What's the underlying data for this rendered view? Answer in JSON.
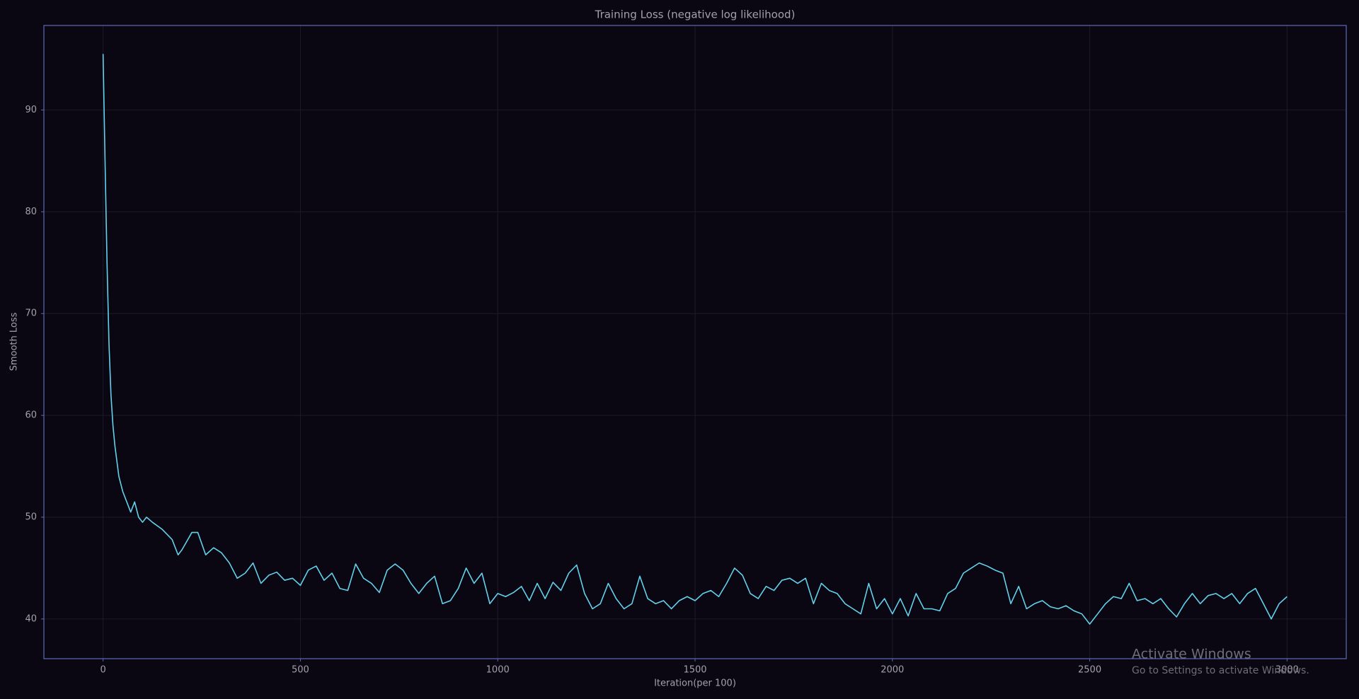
{
  "chart_data": {
    "type": "line",
    "title": "Training Loss (negative log likelihood)",
    "x_label": "Iteration(per 100)",
    "y_label": "Smooth Loss",
    "x": [
      0,
      5,
      10,
      15,
      20,
      25,
      30,
      40,
      50,
      60,
      70,
      80,
      90,
      100,
      110,
      125,
      150,
      175,
      190,
      200,
      225,
      240,
      260,
      280,
      300,
      320,
      340,
      360,
      380,
      400,
      420,
      440,
      460,
      480,
      500,
      520,
      540,
      560,
      580,
      600,
      620,
      640,
      660,
      680,
      700,
      720,
      740,
      760,
      780,
      800,
      820,
      840,
      860,
      880,
      900,
      920,
      940,
      960,
      980,
      1000,
      1020,
      1040,
      1060,
      1080,
      1100,
      1120,
      1140,
      1160,
      1180,
      1200,
      1220,
      1240,
      1260,
      1280,
      1300,
      1320,
      1340,
      1360,
      1380,
      1400,
      1420,
      1440,
      1460,
      1480,
      1500,
      1520,
      1540,
      1560,
      1580,
      1600,
      1620,
      1640,
      1660,
      1680,
      1700,
      1720,
      1740,
      1760,
      1780,
      1800,
      1820,
      1840,
      1860,
      1880,
      1900,
      1920,
      1940,
      1960,
      1980,
      2000,
      2020,
      2040,
      2060,
      2080,
      2100,
      2120,
      2140,
      2160,
      2180,
      2200,
      2220,
      2240,
      2260,
      2280,
      2300,
      2320,
      2340,
      2360,
      2380,
      2400,
      2420,
      2440,
      2460,
      2480,
      2500,
      2520,
      2540,
      2560,
      2580,
      2600,
      2620,
      2640,
      2660,
      2680,
      2700,
      2720,
      2740,
      2760,
      2780,
      2800,
      2820,
      2840,
      2860,
      2880,
      2900,
      2920,
      2940,
      2960,
      2980,
      3000
    ],
    "series": [
      {
        "name": "Smooth Loss",
        "color": "#62d2ea",
        "values": [
          95.5,
          85,
          75,
          67,
          62,
          59,
          57,
          54,
          52.5,
          51.5,
          50.5,
          51.5,
          50,
          49.5,
          50,
          49.5,
          48.8,
          47.8,
          46.3,
          46.8,
          48.5,
          48.5,
          46.3,
          47,
          46.5,
          45.5,
          44,
          44.5,
          45.5,
          43.5,
          44.3,
          44.6,
          43.8,
          44,
          43.3,
          44.8,
          45.2,
          43.8,
          44.5,
          43,
          42.8,
          45.4,
          44,
          43.5,
          42.6,
          44.8,
          45.4,
          44.8,
          43.5,
          42.5,
          43.5,
          44.2,
          41.5,
          41.8,
          43,
          45,
          43.5,
          44.5,
          41.5,
          42.5,
          42.2,
          42.6,
          43.2,
          41.8,
          43.5,
          42,
          43.6,
          42.8,
          44.5,
          45.3,
          42.5,
          41,
          41.5,
          43.5,
          42,
          41,
          41.5,
          44.2,
          42,
          41.5,
          41.8,
          41,
          41.8,
          42.2,
          41.8,
          42.5,
          42.8,
          42.2,
          43.5,
          45,
          44.3,
          42.5,
          42,
          43.2,
          42.8,
          43.8,
          44,
          43.5,
          44,
          41.5,
          43.5,
          42.8,
          42.5,
          41.5,
          41,
          40.5,
          43.5,
          41,
          42,
          40.5,
          42,
          40.3,
          42.5,
          41,
          41,
          40.8,
          42.5,
          43,
          44.5,
          45,
          45.5,
          45.2,
          44.8,
          44.5,
          41.5,
          43.2,
          41,
          41.5,
          41.8,
          41.2,
          41,
          41.3,
          40.8,
          40.5,
          39.5,
          40.5,
          41.5,
          42.2,
          42,
          43.5,
          41.8,
          42,
          41.5,
          42,
          41,
          40.2,
          41.5,
          42.5,
          41.5,
          42.3,
          42.5,
          42,
          42.5,
          41.5,
          42.5,
          43,
          41.5,
          40,
          41.5,
          42.2
        ]
      }
    ],
    "xlim": [
      -150,
      3150
    ],
    "ylim": [
      36.1,
      98.3
    ],
    "xticks": [
      0,
      500,
      1000,
      1500,
      2000,
      2500,
      3000
    ],
    "yticks": [
      40,
      50,
      60,
      70,
      80,
      90
    ],
    "grid": true
  },
  "watermark": {
    "title": "Activate Windows",
    "subtitle": "Go to Settings to activate Windows."
  }
}
